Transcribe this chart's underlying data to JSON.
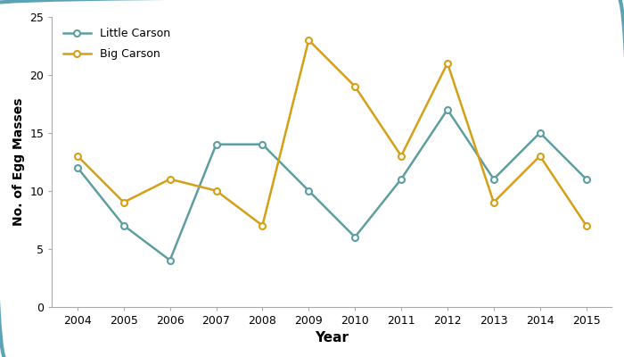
{
  "years": [
    2004,
    2005,
    2006,
    2007,
    2008,
    2009,
    2010,
    2011,
    2012,
    2013,
    2014,
    2015
  ],
  "little_carson": [
    12,
    7,
    4,
    14,
    14,
    10,
    6,
    11,
    17,
    11,
    15,
    11
  ],
  "big_carson": [
    13,
    9,
    11,
    10,
    7,
    23,
    19,
    13,
    21,
    9,
    13,
    7
  ],
  "little_carson_color": "#5f9ea0",
  "big_carson_color": "#d4a017",
  "little_carson_label": "Little Carson",
  "big_carson_label": "Big Carson",
  "xlabel": "Year",
  "ylabel": "No. of Egg Masses",
  "ylim": [
    0,
    25
  ],
  "yticks": [
    0,
    5,
    10,
    15,
    20,
    25
  ],
  "background_color": "#ffffff",
  "border_color": "#5ba3b5",
  "marker": "o",
  "linewidth": 1.8,
  "markersize": 5
}
